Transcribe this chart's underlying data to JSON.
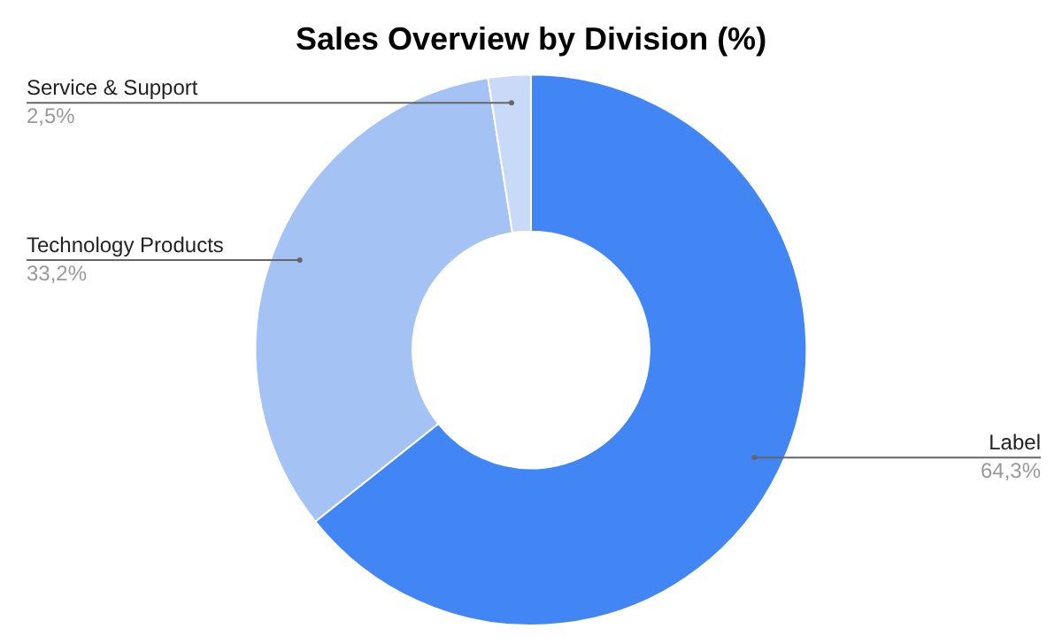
{
  "chart_data": {
    "type": "donut",
    "title": "Sales Overview by Division (%)",
    "categories": [
      "Label",
      "Technology Products",
      "Service & Support"
    ],
    "values": [
      64.3,
      33.2,
      2.5
    ],
    "value_labels": [
      "64,3%",
      "33,2%",
      "2,5%"
    ],
    "colors": [
      "#4285f4",
      "#a4c2f4",
      "#c9daf8"
    ],
    "legend": false
  }
}
